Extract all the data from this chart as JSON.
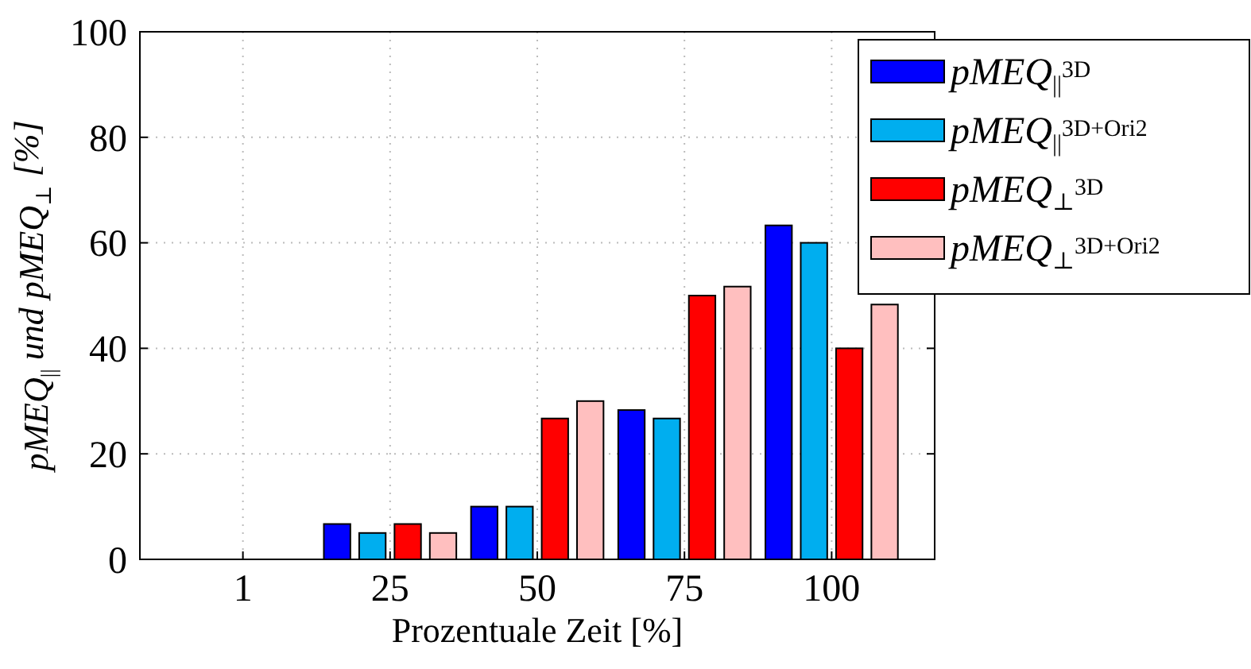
{
  "chart_data": {
    "type": "bar",
    "xlabel": "Prozentuale Zeit [%]",
    "ylabel": "pMEQ$_{||}$ und pMEQ$_{⊥}$ [%]",
    "categories": [
      "1",
      "25",
      "50",
      "75",
      "100"
    ],
    "series": [
      {
        "name": "pMEQ$_{||}$$^{3D}$",
        "color": "#0000ff",
        "values": [
          0,
          6.7,
          10,
          28.3,
          63.3
        ]
      },
      {
        "name": "pMEQ$_{||}$$^{3D+Ori2}$",
        "color": "#00aeef",
        "values": [
          0,
          5,
          10,
          26.7,
          60
        ]
      },
      {
        "name": "pMEQ$_{⊥}$$^{3D}$",
        "color": "#ff0000",
        "values": [
          0,
          6.7,
          26.7,
          50,
          40
        ]
      },
      {
        "name": "pMEQ$_{⊥}$$^{3D+Ori2}$",
        "color": "#ffbfbf",
        "values": [
          0,
          5,
          30,
          51.7,
          48.3
        ]
      }
    ],
    "ylim": [
      0,
      100
    ],
    "yticks": [
      0,
      20,
      40,
      60,
      80,
      100
    ],
    "grid": true,
    "legend": "top right"
  }
}
